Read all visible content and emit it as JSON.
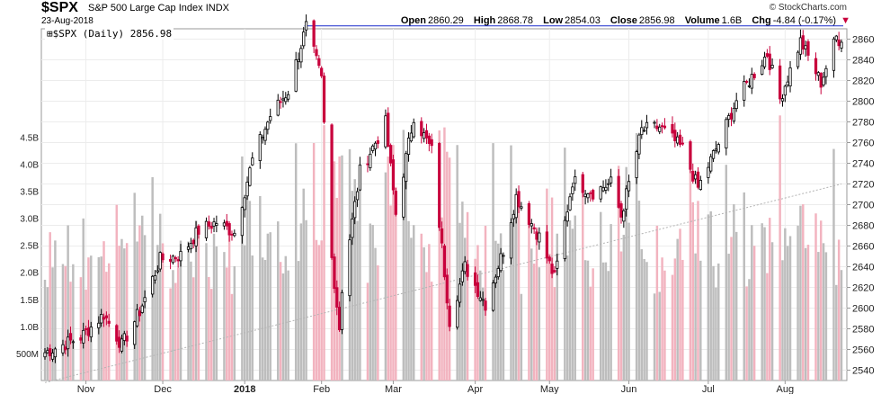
{
  "header": {
    "symbol": "$SPX",
    "name": "S&P 500 Large Cap Index",
    "exchange": "INDX",
    "date": "23-Aug-2018",
    "brand": "© StockCharts.com",
    "open_label": "Open",
    "open": "2860.29",
    "high_label": "High",
    "high": "2868.78",
    "low_label": "Low",
    "low": "2854.03",
    "close_label": "Close",
    "close": "2856.98",
    "volume_label": "Volume",
    "volume": "1.6B",
    "chg_label": "Chg",
    "chg": "-4.84 (-0.17%)",
    "chg_icon": "down-triangle-icon"
  },
  "legend": {
    "text": "$SPX (Daily) 2856.98"
  },
  "colors": {
    "up": "#ffffff",
    "down": "#c8003c",
    "vol_up": "#bdbdbd",
    "vol_down": "#f2b3bf",
    "resistance": "#1a2bcc",
    "ma": "#b4b4b4"
  },
  "chart_data": {
    "type": "candlestick",
    "price_axis": {
      "ticks": [
        2540,
        2560,
        2580,
        2600,
        2620,
        2640,
        2660,
        2680,
        2700,
        2720,
        2740,
        2760,
        2780,
        2800,
        2820,
        2840,
        2860
      ],
      "range": [
        2530,
        2870
      ]
    },
    "volume_axis": {
      "ticks": [
        "500M",
        "1.0B",
        "1.5B",
        "2.0B",
        "2.5B",
        "3.0B",
        "3.5B",
        "4.0B",
        "4.5B"
      ],
      "range_billions": [
        0,
        6.5
      ]
    },
    "x_labels": [
      "Nov",
      "Dec",
      "2018",
      "Feb",
      "Mar",
      "Apr",
      "May",
      "Jun",
      "Jul",
      "Aug"
    ],
    "x_label_dates": [
      "2017-11-01",
      "2017-12-01",
      "2018-01-02",
      "2018-02-01",
      "2018-03-01",
      "2018-04-02",
      "2018-05-01",
      "2018-06-01",
      "2018-07-02",
      "2018-08-01"
    ],
    "date_range": [
      "2017-10-16",
      "2018-08-23"
    ],
    "last_close": 2856.98,
    "resistance_line": 2872.87,
    "moving_average_200": {
      "start": 2528,
      "end": 2720
    },
    "anchor_closes": [
      [
        "2017-10-16",
        2557
      ],
      [
        "2017-10-30",
        2572
      ],
      [
        "2017-11-08",
        2594
      ],
      [
        "2017-11-15",
        2564
      ],
      [
        "2017-11-22",
        2597
      ],
      [
        "2017-11-30",
        2647
      ],
      [
        "2017-12-08",
        2651
      ],
      [
        "2017-12-15",
        2675
      ],
      [
        "2017-12-22",
        2683
      ],
      [
        "2017-12-29",
        2673
      ],
      [
        "2018-01-05",
        2743
      ],
      [
        "2018-01-12",
        2786
      ],
      [
        "2018-01-19",
        2810
      ],
      [
        "2018-01-26",
        2872
      ],
      [
        "2018-02-01",
        2821
      ],
      [
        "2018-02-05",
        2648
      ],
      [
        "2018-02-08",
        2581
      ],
      [
        "2018-02-09",
        2619
      ],
      [
        "2018-02-16",
        2732
      ],
      [
        "2018-02-26",
        2779
      ],
      [
        "2018-03-02",
        2691
      ],
      [
        "2018-03-09",
        2786
      ],
      [
        "2018-03-16",
        2752
      ],
      [
        "2018-03-23",
        2588
      ],
      [
        "2018-03-29",
        2640
      ],
      [
        "2018-04-06",
        2604
      ],
      [
        "2018-04-13",
        2656
      ],
      [
        "2018-04-18",
        2708
      ],
      [
        "2018-04-27",
        2669
      ],
      [
        "2018-05-03",
        2629
      ],
      [
        "2018-05-10",
        2723
      ],
      [
        "2018-05-18",
        2712
      ],
      [
        "2018-05-25",
        2721
      ],
      [
        "2018-05-29",
        2689
      ],
      [
        "2018-06-06",
        2772
      ],
      [
        "2018-06-13",
        2775
      ],
      [
        "2018-06-22",
        2754
      ],
      [
        "2018-06-28",
        2716
      ],
      [
        "2018-07-06",
        2759
      ],
      [
        "2018-07-13",
        2801
      ],
      [
        "2018-07-25",
        2846
      ],
      [
        "2018-07-30",
        2802
      ],
      [
        "2018-08-07",
        2858
      ],
      [
        "2018-08-15",
        2818
      ],
      [
        "2018-08-21",
        2862
      ],
      [
        "2018-08-23",
        2857
      ]
    ]
  }
}
